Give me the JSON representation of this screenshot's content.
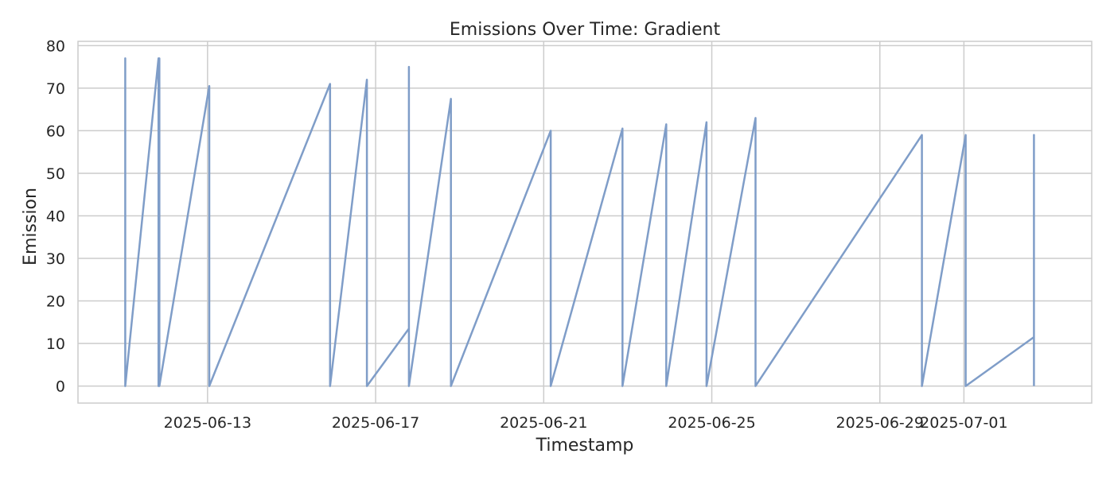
{
  "chart_data": {
    "type": "line",
    "title": "Emissions Over Time: Gradient",
    "xlabel": "Timestamp",
    "ylabel": "Emission",
    "x_axis_type": "date",
    "xlim": [
      "2025-06-09T22:00",
      "2025-07-04T01:00"
    ],
    "ylim": [
      -4,
      81
    ],
    "x_ticks": [
      "2025-06-13",
      "2025-06-17",
      "2025-06-21",
      "2025-06-25",
      "2025-06-29",
      "2025-07-01"
    ],
    "y_ticks": [
      0,
      10,
      20,
      30,
      40,
      50,
      60,
      70,
      80
    ],
    "grid": true,
    "legend": "none",
    "line_color": "#7f9dc8",
    "grid_color": "#cccccc",
    "series": [
      {
        "x": [
          "2025-06-11T01:00",
          "2025-06-11T01:00",
          "2025-06-11T01:00",
          "2025-06-11T20:00",
          "2025-06-11T20:00",
          "2025-06-11T20:00",
          "2025-06-11T20:30",
          "2025-06-11T20:30",
          "2025-06-11T20:30",
          "2025-06-13T01:00",
          "2025-06-13T01:00",
          "2025-06-13T01:00",
          "2025-06-15T22:00",
          "2025-06-15T22:00",
          "2025-06-15T22:00",
          "2025-06-16T19:00",
          "2025-06-16T19:00",
          "2025-06-16T19:00",
          "2025-06-17T19:00",
          "2025-06-17T19:00",
          "2025-06-17T19:00",
          "2025-06-17T19:00",
          "2025-06-18T19:00",
          "2025-06-18T19:00",
          "2025-06-18T19:00",
          "2025-06-21T04:00",
          "2025-06-21T04:00",
          "2025-06-21T04:00",
          "2025-06-22T21:00",
          "2025-06-22T21:00",
          "2025-06-22T21:00",
          "2025-06-23T22:00",
          "2025-06-23T22:00",
          "2025-06-23T22:00",
          "2025-06-24T21:00",
          "2025-06-24T21:00",
          "2025-06-24T21:00",
          "2025-06-26T01:00",
          "2025-06-26T01:00",
          "2025-06-26T01:00",
          "2025-06-30T00:00",
          "2025-06-30T00:00",
          "2025-06-30T00:00",
          "2025-07-01T01:00",
          "2025-07-01T01:00",
          "2025-07-01T01:00",
          "2025-07-02T16:00",
          "2025-07-02T16:00",
          "2025-07-02T16:00"
        ],
        "y": [
          77,
          0,
          0,
          77,
          0,
          0,
          77,
          0,
          0,
          70.5,
          0,
          0,
          71,
          0,
          0,
          72,
          0,
          0,
          13.5,
          75,
          0,
          0,
          67.5,
          17,
          0,
          60,
          11.5,
          0,
          60.5,
          0,
          0,
          61.5,
          0,
          0,
          62,
          0,
          0,
          63,
          0,
          0,
          59,
          0,
          0,
          59,
          0,
          0,
          11.5,
          59,
          0
        ],
        "x_prefix": [
          "2025-06-11T01:00"
        ],
        "y_prefix": [
          0
        ]
      }
    ]
  }
}
